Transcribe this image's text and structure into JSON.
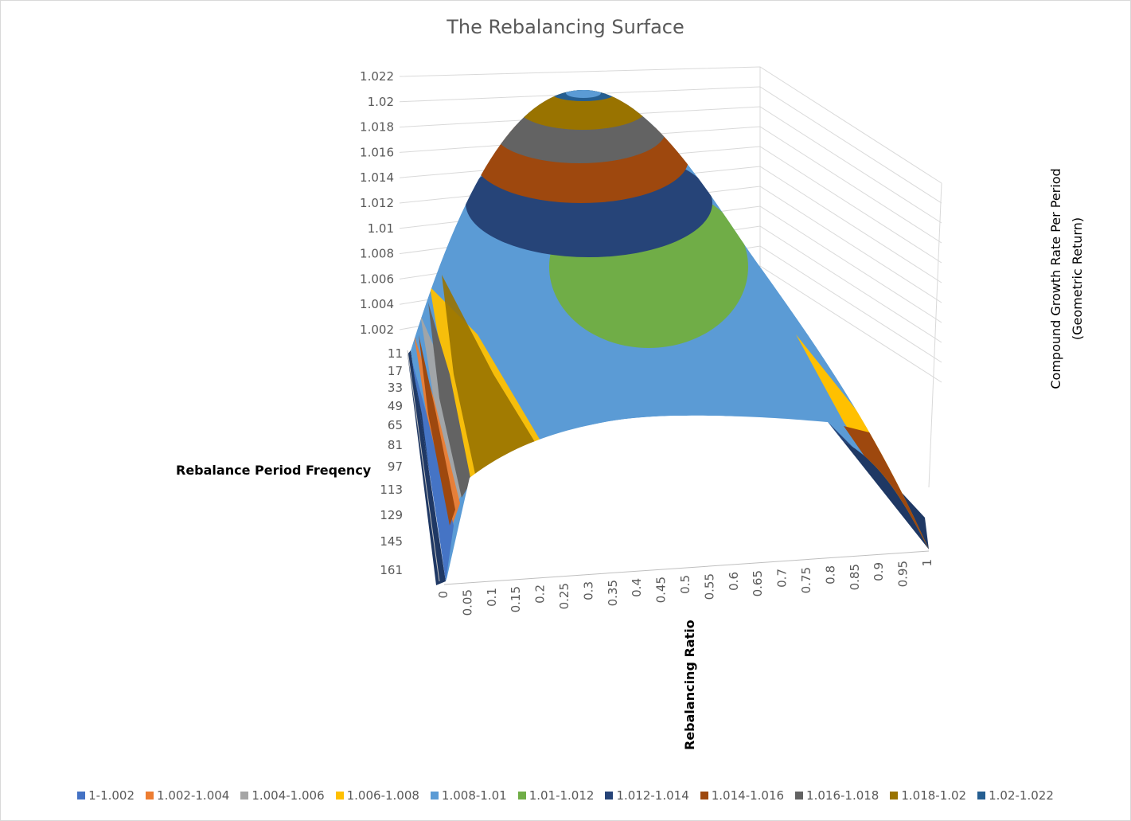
{
  "chart_data": {
    "type": "surface",
    "title": "The Rebalancing Surface",
    "xlabel": "Rebalancing Ratio",
    "ylabel": "Rebalance Period Freqency",
    "zlabel_lines": [
      "Compound Growth Rate Per Period",
      "(Geometric Return)"
    ],
    "x_ticks": [
      "0",
      "0.05",
      "0.1",
      "0.15",
      "0.2",
      "0.25",
      "0.3",
      "0.35",
      "0.4",
      "0.45",
      "0.5",
      "0.55",
      "0.6",
      "0.65",
      "0.7",
      "0.75",
      "0.8",
      "0.85",
      "0.9",
      "0.95",
      "1"
    ],
    "y_ticks": [
      "11",
      "17",
      "33",
      "49",
      "65",
      "81",
      "97",
      "113",
      "129",
      "145",
      "161"
    ],
    "z_ticks": [
      "1.002",
      "1.004",
      "1.006",
      "1.008",
      "1.01",
      "1.012",
      "1.014",
      "1.016",
      "1.018",
      "1.02",
      "1.022"
    ],
    "zlim": [
      1.0,
      1.022
    ],
    "peak": {
      "x": 0.3,
      "y": 11,
      "z": 1.0215
    },
    "legend": [
      {
        "label": "1-1.002",
        "color": "#4472c4"
      },
      {
        "label": "1.002-1.004",
        "color": "#ed7d31"
      },
      {
        "label": "1.004-1.006",
        "color": "#a5a5a5"
      },
      {
        "label": "1.006-1.008",
        "color": "#ffc000"
      },
      {
        "label": "1.008-1.01",
        "color": "#5b9bd5"
      },
      {
        "label": "1.01-1.012",
        "color": "#70ad47"
      },
      {
        "label": "1.012-1.014",
        "color": "#264478"
      },
      {
        "label": "1.014-1.016",
        "color": "#9e480e"
      },
      {
        "label": "1.016-1.018",
        "color": "#636363"
      },
      {
        "label": "1.018-1.02",
        "color": "#997300"
      },
      {
        "label": "1.02-1.022",
        "color": "#255e91"
      }
    ]
  }
}
